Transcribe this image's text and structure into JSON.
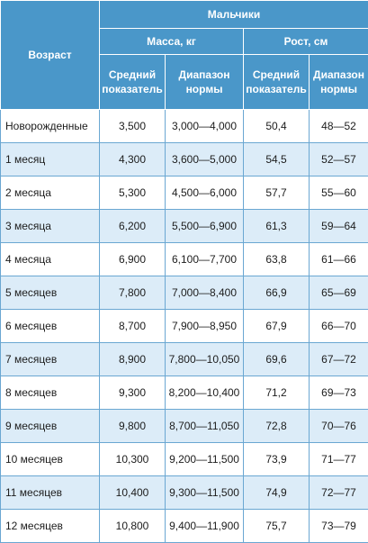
{
  "table": {
    "age_header": "Возраст",
    "group_header": "Мальчики",
    "mass_header": "Масса, кг",
    "height_header": "Рост, см",
    "mean_line1": "Средний",
    "mean_line2": "показатель",
    "range_line1": "Диапазон",
    "range_line2": "нормы",
    "rows": [
      {
        "age": "Новорожденные",
        "mass_mean": "3,500",
        "mass_range": "3,000—4,000",
        "height_mean": "50,4",
        "height_range": "48—52"
      },
      {
        "age": "1 месяц",
        "mass_mean": "4,300",
        "mass_range": "3,600—5,000",
        "height_mean": "54,5",
        "height_range": "52—57"
      },
      {
        "age": "2 месяца",
        "mass_mean": "5,300",
        "mass_range": "4,500—6,000",
        "height_mean": "57,7",
        "height_range": "55—60"
      },
      {
        "age": "3 месяца",
        "mass_mean": "6,200",
        "mass_range": "5,500—6,900",
        "height_mean": "61,3",
        "height_range": "59—64"
      },
      {
        "age": "4 месяца",
        "mass_mean": "6,900",
        "mass_range": "6,100—7,700",
        "height_mean": "63,8",
        "height_range": "61—66"
      },
      {
        "age": "5 месяцев",
        "mass_mean": "7,800",
        "mass_range": "7,000—8,400",
        "height_mean": "66,9",
        "height_range": "65—69"
      },
      {
        "age": "6 месяцев",
        "mass_mean": "8,700",
        "mass_range": "7,900—8,950",
        "height_mean": "67,9",
        "height_range": "66—70"
      },
      {
        "age": "7 месяцев",
        "mass_mean": "8,900",
        "mass_range": "7,800—10,050",
        "height_mean": "69,6",
        "height_range": "67—72"
      },
      {
        "age": "8 месяцев",
        "mass_mean": "9,300",
        "mass_range": "8,200—10,400",
        "height_mean": "71,2",
        "height_range": "69—73"
      },
      {
        "age": "9 месяцев",
        "mass_mean": "9,800",
        "mass_range": "8,700—11,050",
        "height_mean": "72,8",
        "height_range": "70—76"
      },
      {
        "age": "10 месяцев",
        "mass_mean": "10,300",
        "mass_range": "9,200—11,500",
        "height_mean": "73,9",
        "height_range": "71—77"
      },
      {
        "age": "11 месяцев",
        "mass_mean": "10,400",
        "mass_range": "9,300—11,500",
        "height_mean": "74,9",
        "height_range": "72—77"
      },
      {
        "age": "12 месяцев",
        "mass_mean": "10,800",
        "mass_range": "9,400—11,900",
        "height_mean": "75,7",
        "height_range": "73—79"
      }
    ]
  }
}
